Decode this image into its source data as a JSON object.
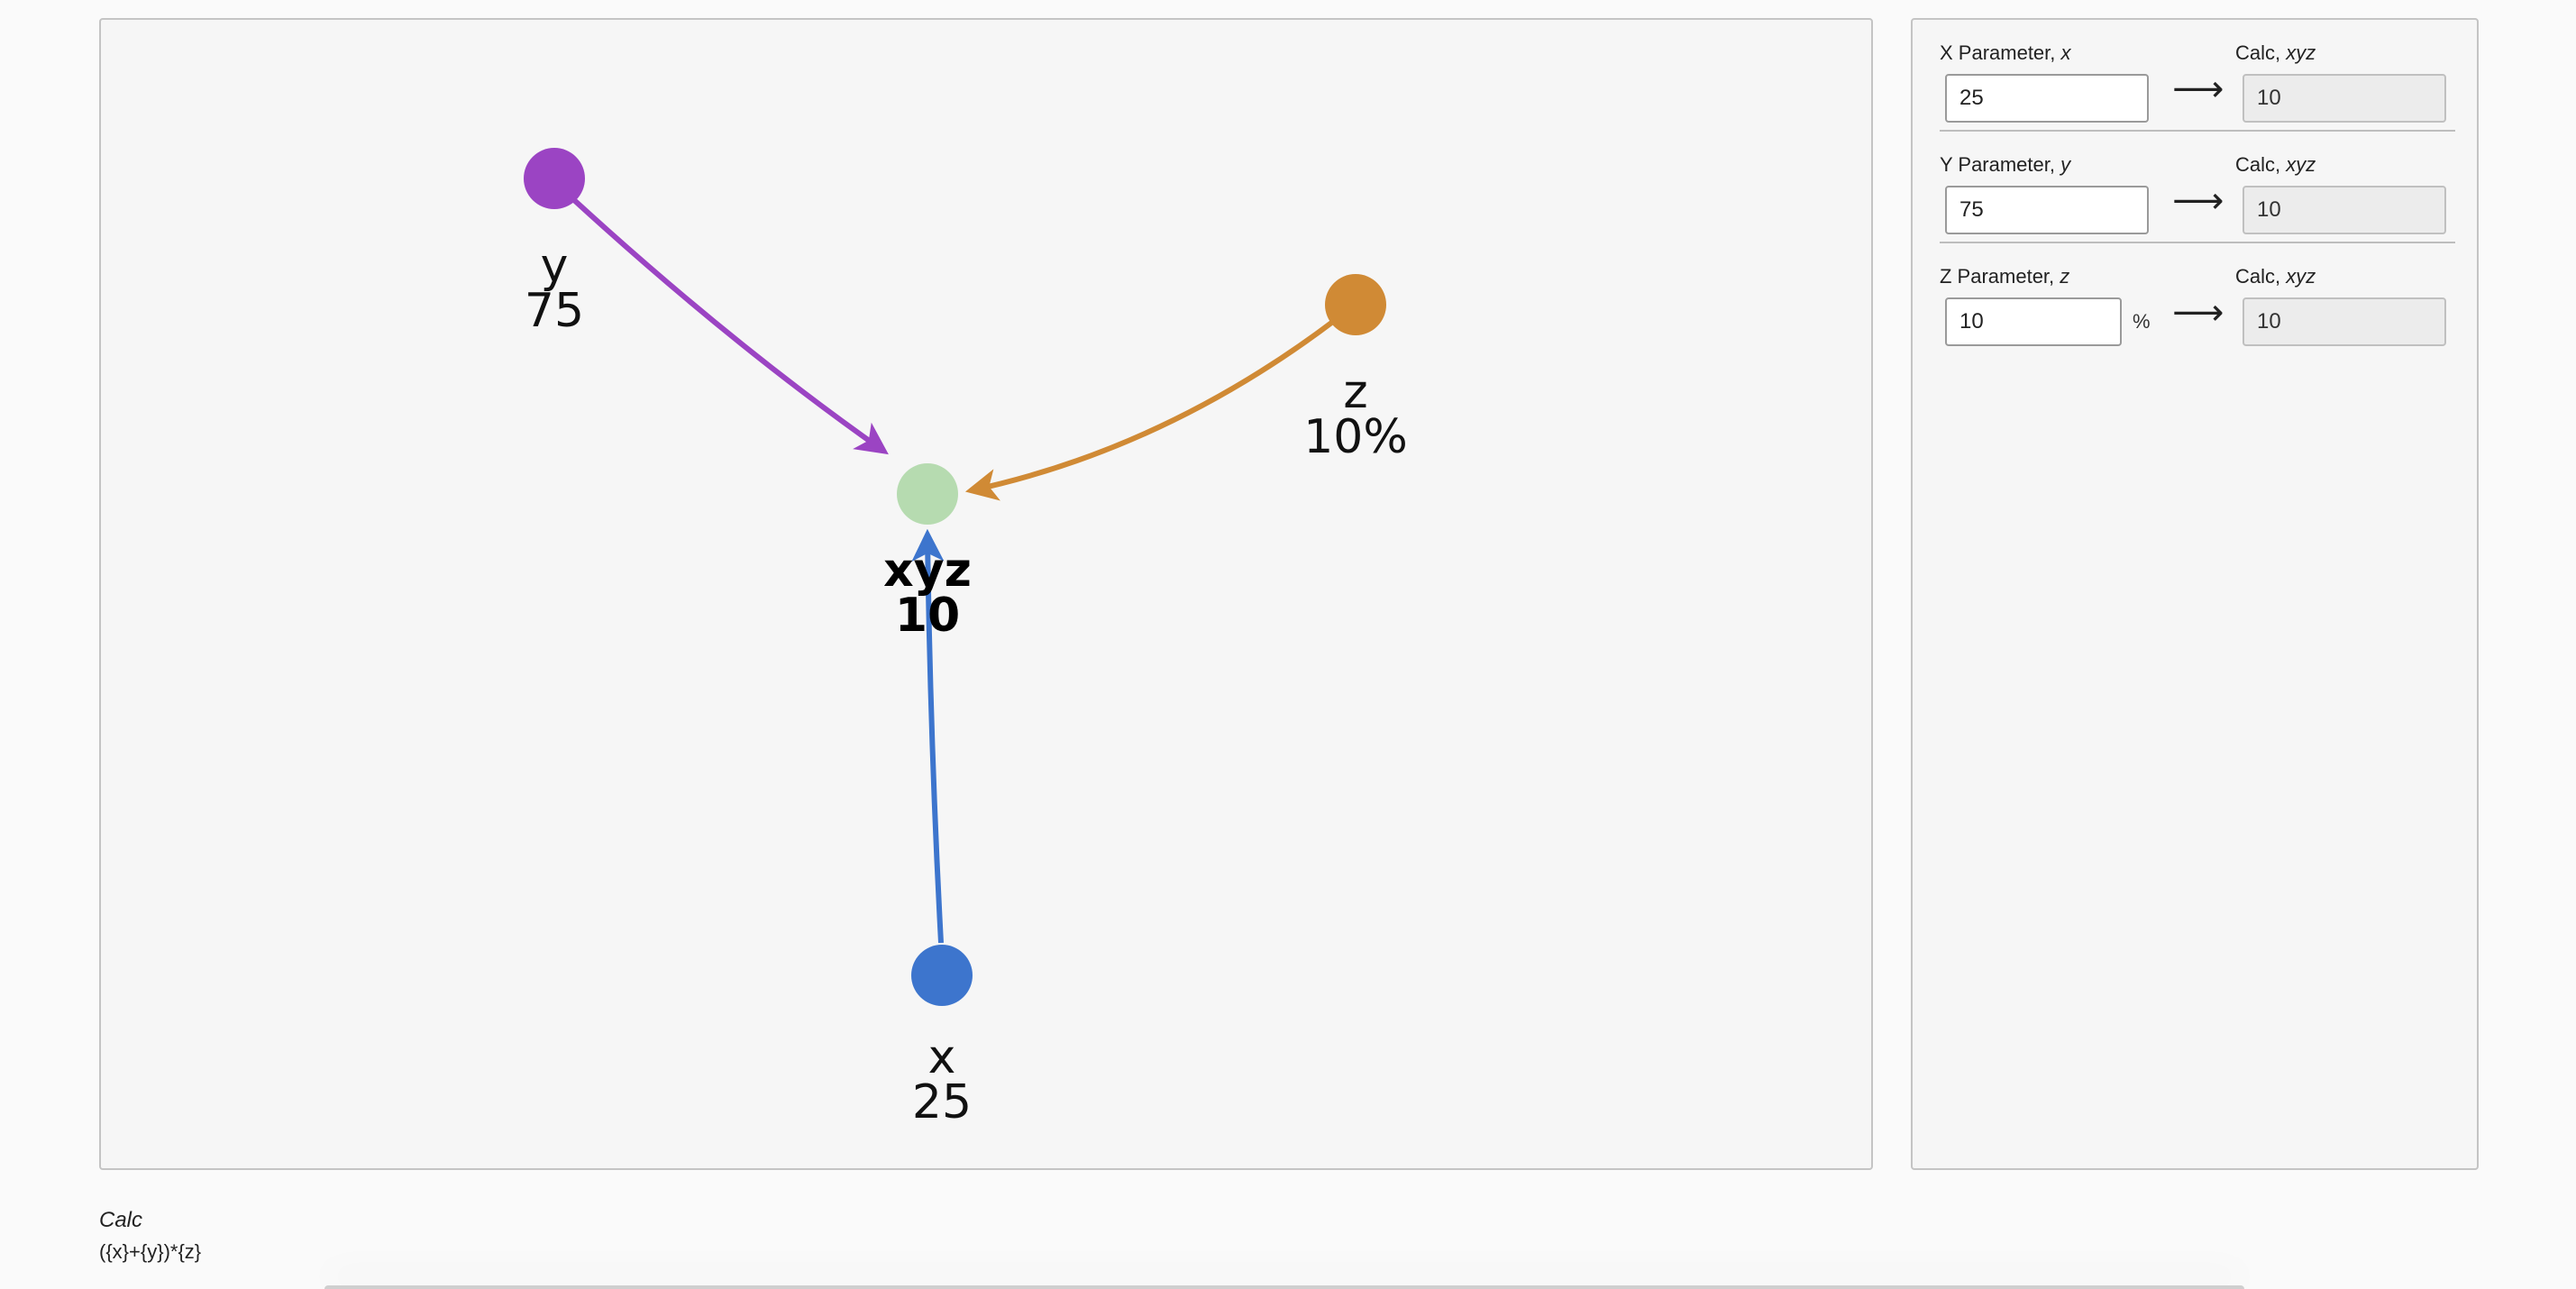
{
  "graph": {
    "nodes": [
      {
        "id": "y",
        "name": "y",
        "value": "75",
        "color": "#9b44c3",
        "bold": false
      },
      {
        "id": "z",
        "name": "z",
        "value": "10%",
        "color": "#d08a35",
        "bold": false
      },
      {
        "id": "xyz",
        "name": "xyz",
        "value": "10",
        "color": "#b6dbb0",
        "bold": true
      },
      {
        "id": "x",
        "name": "x",
        "value": "25",
        "color": "#3d75cd",
        "bold": false
      }
    ],
    "edges": [
      {
        "from": "y",
        "to": "xyz",
        "color": "#9b44c3"
      },
      {
        "from": "z",
        "to": "xyz",
        "color": "#d08a35"
      },
      {
        "from": "x",
        "to": "xyz",
        "color": "#3d75cd"
      }
    ]
  },
  "params": [
    {
      "label": "X Parameter, ",
      "var": "x",
      "value": "25",
      "unit": "",
      "calc_label": "Calc, ",
      "calc_var": "xyz",
      "calc_value": "10"
    },
    {
      "label": "Y Parameter, ",
      "var": "y",
      "value": "75",
      "unit": "",
      "calc_label": "Calc, ",
      "calc_var": "xyz",
      "calc_value": "10"
    },
    {
      "label": "Z Parameter, ",
      "var": "z",
      "value": "10",
      "unit": "%",
      "calc_label": "Calc, ",
      "calc_var": "xyz",
      "calc_value": "10"
    }
  ],
  "arrow_glyph": "⟶",
  "formula": {
    "title": "Calc",
    "expression": "({x}+{y})*{z}"
  }
}
